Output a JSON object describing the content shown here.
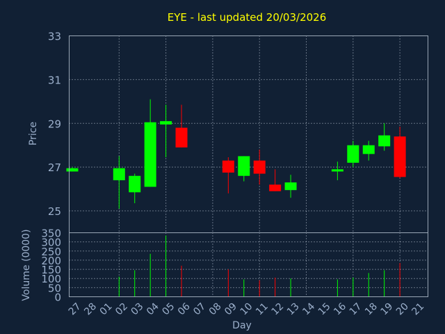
{
  "chart_data": {
    "type": "candlestick",
    "title": "EYE - last updated 20/03/2026",
    "xlabel": "Day",
    "price_panel": {
      "ylabel": "Price",
      "ylim": [
        24,
        33
      ],
      "yticks": [
        25,
        27,
        29,
        31,
        33
      ]
    },
    "volume_panel": {
      "ylabel": "Volume (0000)",
      "ylim": [
        0,
        350
      ],
      "yticks": [
        0,
        50,
        100,
        150,
        200,
        250,
        300,
        350
      ]
    },
    "grid": true,
    "colors": {
      "up": "#00ff00",
      "down": "#ff0000",
      "title": "#ffff00",
      "axis_text": "#9cb0cc",
      "background": "#112034"
    },
    "x_ticks": [
      "27",
      "28",
      "01",
      "02",
      "03",
      "04",
      "05",
      "06",
      "07",
      "08",
      "09",
      "10",
      "11",
      "12",
      "13",
      "14",
      "15",
      "16",
      "17",
      "18",
      "19",
      "20",
      "21"
    ],
    "candles": [
      {
        "day": "27",
        "open": 26.8,
        "high": 27.0,
        "low": 26.8,
        "close": 26.95,
        "volume": 0
      },
      {
        "day": "02",
        "open": 26.4,
        "high": 27.5,
        "low": 25.1,
        "close": 26.95,
        "volume": 110
      },
      {
        "day": "03",
        "open": 25.85,
        "high": 26.7,
        "low": 25.35,
        "close": 26.6,
        "volume": 145
      },
      {
        "day": "04",
        "open": 26.1,
        "high": 30.1,
        "low": 26.1,
        "close": 29.05,
        "volume": 235
      },
      {
        "day": "05",
        "open": 28.95,
        "high": 29.85,
        "low": 27.45,
        "close": 29.1,
        "volume": 335
      },
      {
        "day": "06",
        "open": 28.8,
        "high": 29.85,
        "low": 27.9,
        "close": 27.9,
        "volume": 170
      },
      {
        "day": "09",
        "open": 27.3,
        "high": 27.45,
        "low": 25.8,
        "close": 26.75,
        "volume": 150
      },
      {
        "day": "10",
        "open": 26.6,
        "high": 27.5,
        "low": 26.35,
        "close": 27.5,
        "volume": 95
      },
      {
        "day": "11",
        "open": 27.3,
        "high": 27.8,
        "low": 26.2,
        "close": 26.7,
        "volume": 90
      },
      {
        "day": "12",
        "open": 26.2,
        "high": 26.9,
        "low": 25.9,
        "close": 25.9,
        "volume": 105
      },
      {
        "day": "13",
        "open": 25.95,
        "high": 26.65,
        "low": 25.6,
        "close": 26.3,
        "volume": 100
      },
      {
        "day": "16",
        "open": 26.8,
        "high": 27.25,
        "low": 26.4,
        "close": 26.9,
        "volume": 95
      },
      {
        "day": "17",
        "open": 27.2,
        "high": 28.2,
        "low": 27.0,
        "close": 28.0,
        "volume": 105
      },
      {
        "day": "18",
        "open": 27.6,
        "high": 28.2,
        "low": 27.3,
        "close": 28.0,
        "volume": 130
      },
      {
        "day": "19",
        "open": 27.95,
        "high": 29.0,
        "low": 27.75,
        "close": 28.45,
        "volume": 145
      },
      {
        "day": "20",
        "open": 28.4,
        "high": 28.85,
        "low": 26.5,
        "close": 26.55,
        "volume": 185
      }
    ]
  }
}
